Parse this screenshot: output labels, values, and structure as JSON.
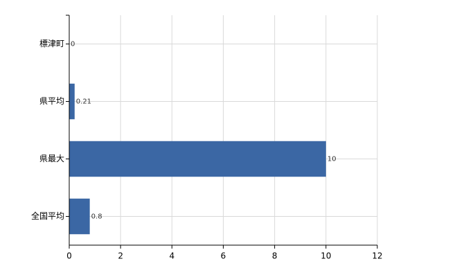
{
  "chart_data": {
    "type": "bar",
    "orientation": "horizontal",
    "categories": [
      "標津町",
      "県平均",
      "県最大",
      "全国平均"
    ],
    "values": [
      0,
      0.21,
      10,
      0.8
    ],
    "color": "#3b67a4",
    "xlim": [
      0,
      12
    ],
    "xticks": [
      0,
      2,
      4,
      6,
      8,
      10,
      12
    ],
    "grid": true,
    "show_value_labels": true
  }
}
